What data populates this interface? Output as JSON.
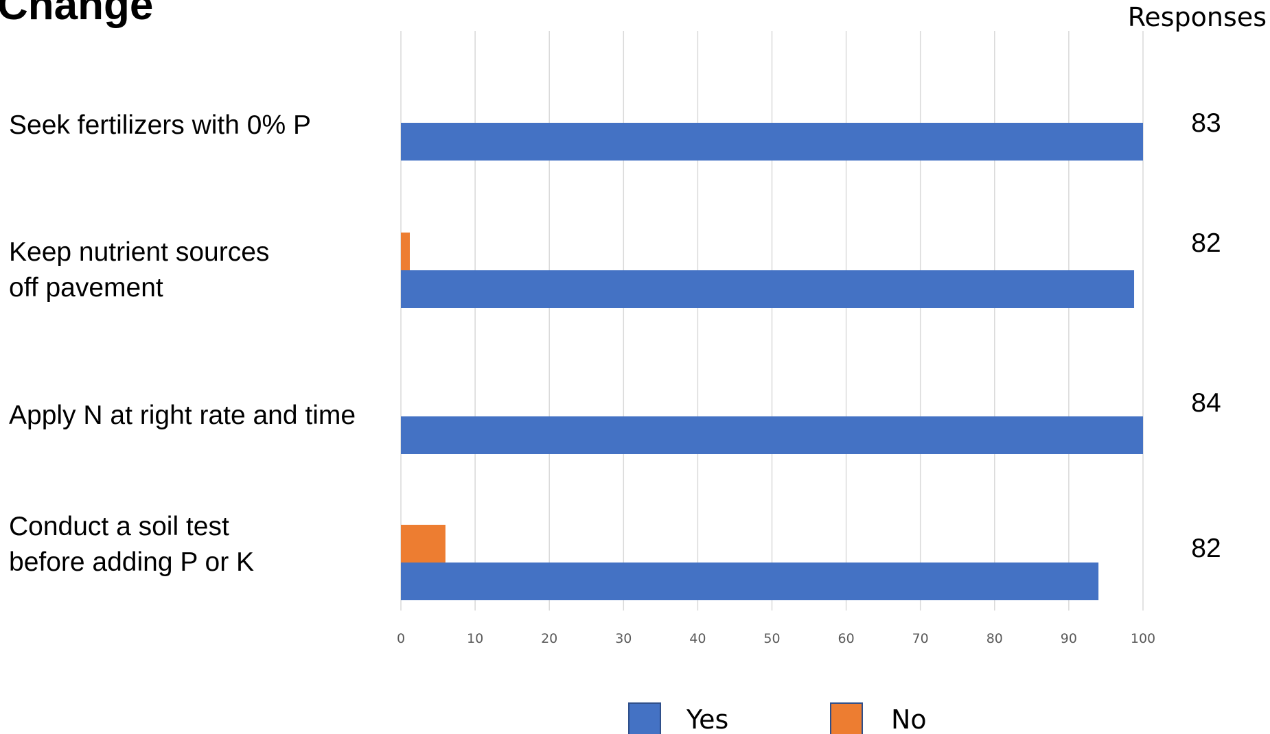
{
  "header": {
    "title_fragment": "Change",
    "responses_label": "Responses"
  },
  "chart_data": {
    "type": "bar",
    "orientation": "horizontal",
    "categories": [
      [
        "Seek fertilizers with 0% P"
      ],
      [
        "Keep nutrient sources",
        "off pavement"
      ],
      [
        "Apply N at right rate and time"
      ],
      [
        "Conduct a soil test",
        "before adding P or K"
      ]
    ],
    "series": [
      {
        "name": "Yes",
        "color": "#4472c4",
        "values": [
          100,
          98.8,
          100,
          94
        ]
      },
      {
        "name": "No",
        "color": "#ed7d31",
        "values": [
          0,
          1.2,
          0,
          6
        ]
      }
    ],
    "responses": [
      "83",
      "82",
      "84",
      "82"
    ],
    "xlim": [
      0,
      100
    ],
    "xticks": [
      "0",
      "10",
      "20",
      "30",
      "40",
      "50",
      "60",
      "70",
      "80",
      "90",
      "100"
    ],
    "grid": true,
    "legend_position": "bottom"
  }
}
